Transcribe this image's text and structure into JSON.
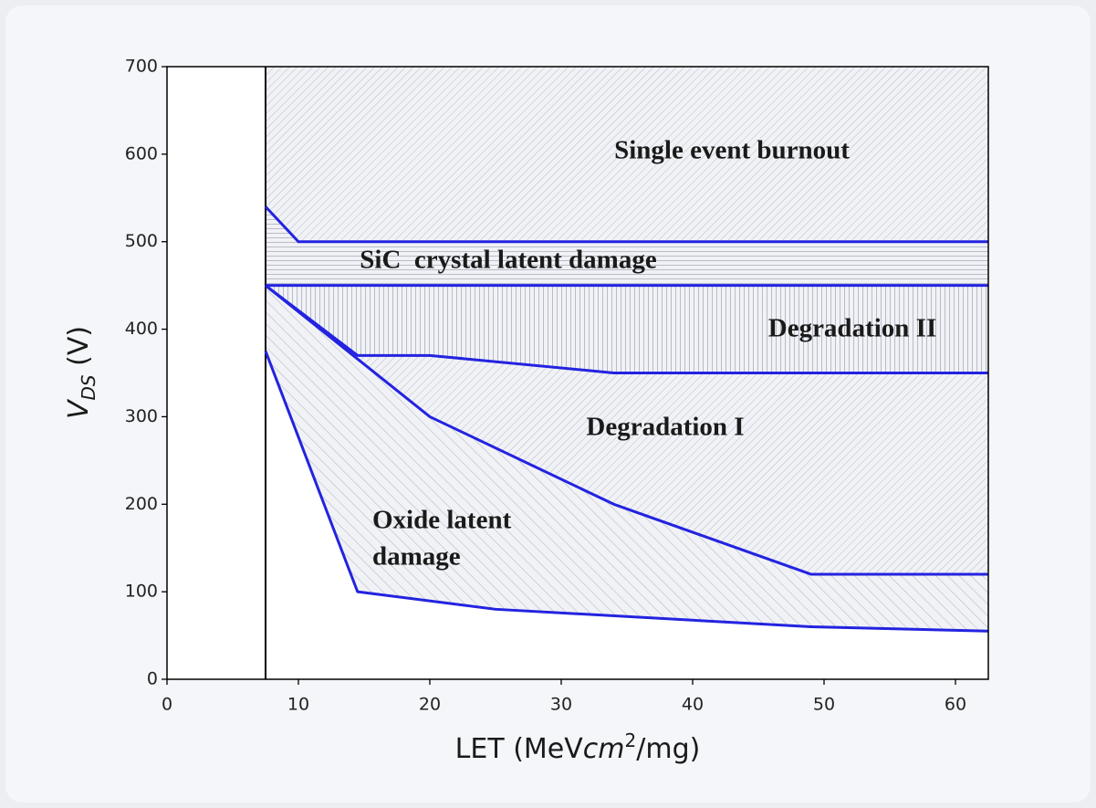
{
  "chart_data": {
    "type": "line",
    "xlabel": {
      "pre": "LET (MeV",
      "italic": "cm",
      "sup": "2",
      "post": "/mg)"
    },
    "ylabel": {
      "main": "V",
      "sub": "DS",
      "post": " (V)"
    },
    "xlim": [
      0,
      62.5
    ],
    "ylim": [
      0,
      700
    ],
    "xticks": [
      0,
      10,
      20,
      30,
      40,
      50,
      60
    ],
    "yticks": [
      0,
      100,
      200,
      300,
      400,
      500,
      600,
      700
    ],
    "series": [
      {
        "color": "#000000",
        "x": [
          7.5,
          7.5
        ],
        "values": [
          0,
          700
        ]
      },
      {
        "color": "#2323e0",
        "x": [
          7.5,
          10,
          62.5
        ],
        "values": [
          540,
          500,
          500
        ]
      },
      {
        "color": "#2323e0",
        "x": [
          7.5,
          62.5
        ],
        "values": [
          450,
          450
        ]
      },
      {
        "color": "#2323e0",
        "x": [
          7.5,
          14.5,
          20,
          34,
          62.5
        ],
        "values": [
          450,
          370,
          370,
          350,
          350
        ]
      },
      {
        "color": "#2323e0",
        "x": [
          7.5,
          20,
          34,
          49,
          62.5
        ],
        "values": [
          450,
          300,
          200,
          120,
          120
        ]
      },
      {
        "color": "#2323e0",
        "x": [
          7.5,
          14.5,
          25,
          49,
          62.5
        ],
        "values": [
          375,
          100,
          80,
          60,
          55
        ]
      }
    ],
    "annotations": [
      "Single event burnout",
      "SiC  crystal latent damage",
      "Degradation II",
      "Degradation I",
      "Oxide latent",
      "damage"
    ]
  }
}
